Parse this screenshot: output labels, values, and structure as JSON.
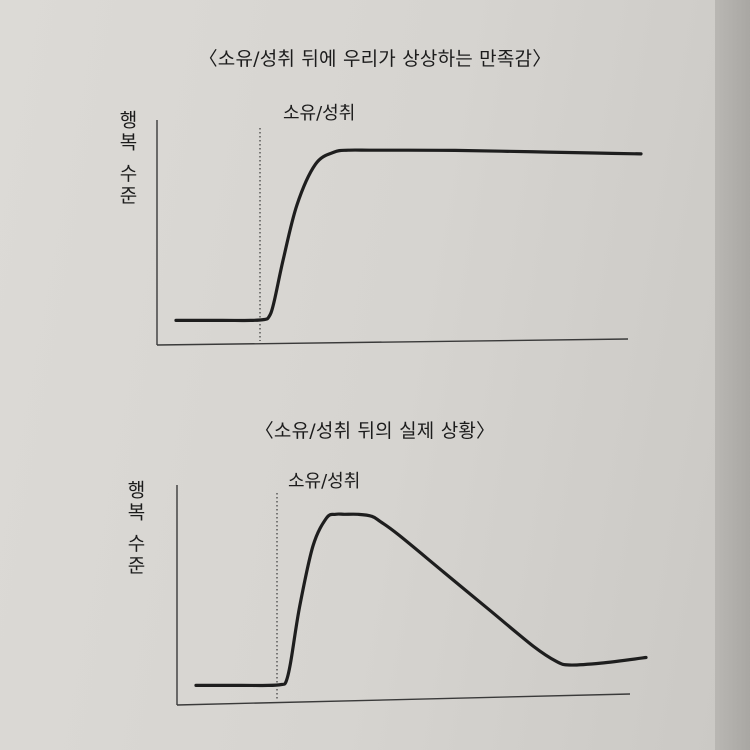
{
  "chart_data": [
    {
      "type": "line",
      "title": "〈소유/성취 뒤에 우리가 상상하는 만족감〉",
      "ylabel": "행복 수준",
      "xlabel": "",
      "annotations": [
        {
          "text": "소유/성취",
          "x": 2.0,
          "style": "dotted-vertical"
        }
      ],
      "xlim": [
        0,
        10
      ],
      "ylim": [
        0,
        10
      ],
      "series": [
        {
          "x": [
            0,
            1.0,
            1.6,
            1.9,
            2.0,
            2.1,
            2.3,
            2.6,
            3.0,
            3.4,
            3.7,
            4.2,
            5.0,
            6.0,
            7.0,
            8.0,
            9.0,
            10.0
          ],
          "values": [
            0.3,
            0.3,
            0.3,
            0.35,
            0.5,
            1.2,
            3.5,
            6.5,
            8.7,
            9.35,
            9.45,
            9.45,
            9.45,
            9.44,
            9.4,
            9.35,
            9.3,
            9.25
          ]
        }
      ]
    },
    {
      "type": "line",
      "title": "〈소유/성취 뒤의 실제 상황〉",
      "ylabel": "행복 수준",
      "xlabel": "",
      "annotations": [
        {
          "text": "소유/성취",
          "x": 2.0,
          "style": "dotted-vertical"
        }
      ],
      "xlim": [
        0,
        10
      ],
      "ylim": [
        0,
        10
      ],
      "series": [
        {
          "x": [
            0,
            1.0,
            1.6,
            1.9,
            2.0,
            2.1,
            2.3,
            2.6,
            2.9,
            3.1,
            3.3,
            3.6,
            3.9,
            4.1,
            4.5,
            5.5,
            6.5,
            7.5,
            8.0,
            8.3,
            9.0,
            10.0
          ],
          "values": [
            0.3,
            0.3,
            0.3,
            0.35,
            0.5,
            1.5,
            4.5,
            7.8,
            9.3,
            9.5,
            9.5,
            9.5,
            9.4,
            9.1,
            8.4,
            6.4,
            4.4,
            2.4,
            1.6,
            1.4,
            1.5,
            1.8
          ]
        }
      ]
    }
  ]
}
